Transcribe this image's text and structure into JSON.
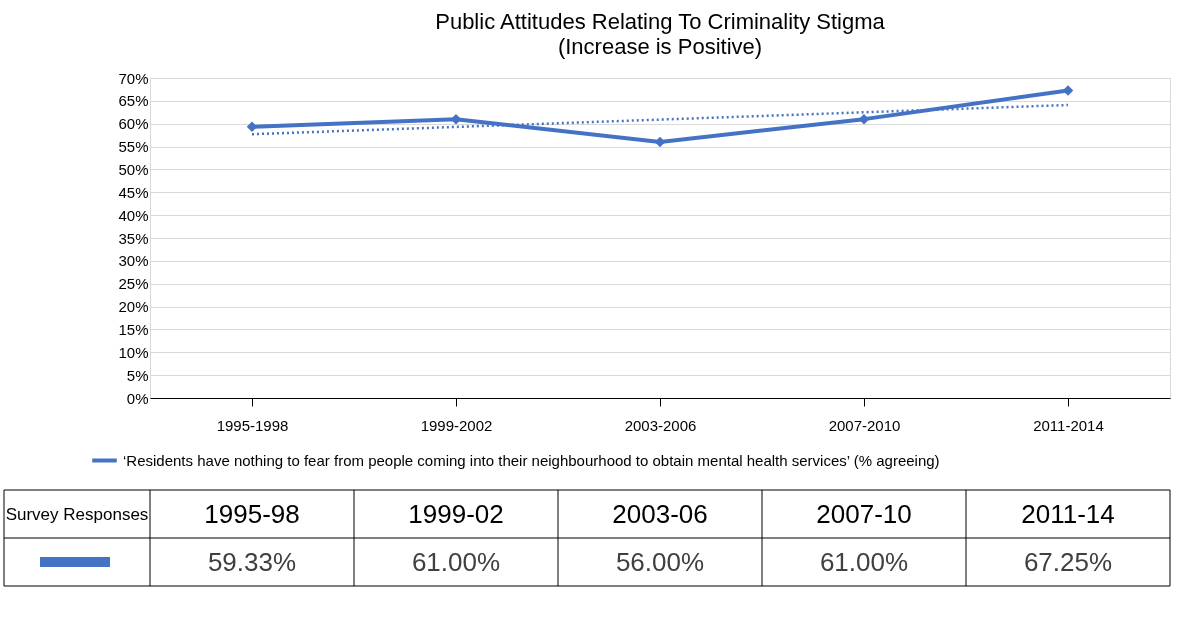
{
  "chart_data": {
    "type": "line",
    "title": "Public Attitudes Relating To Criminality Stigma",
    "subtitle": "(Increase is Positive)",
    "categories": [
      "1995-1998",
      "1999-2002",
      "2003-2006",
      "2007-2010",
      "2011-2014"
    ],
    "series": [
      {
        "name": "‘Residents have nothing to fear from people coming into their neighbourhood to obtain mental health services’ (% agreeing)",
        "color": "#4472c4",
        "values": [
          59.33,
          61.0,
          56.0,
          61.0,
          67.25
        ],
        "marker": "diamond",
        "value_labels": [
          "59.33%",
          "61.00%",
          "56.00%",
          "61.00%",
          "67.25%"
        ]
      },
      {
        "type": "line",
        "color": "#4472c4",
        "x": [
          "1995-1998",
          "2011-2014"
        ],
        "values": [
          57.7,
          64.1
        ],
        "line_style": "dotted",
        "marker": "none"
      }
    ],
    "ylim": [
      0,
      70
    ],
    "yticks": [
      {
        "value": 0,
        "label": "0%"
      },
      {
        "value": 5,
        "label": "5%"
      },
      {
        "value": 10,
        "label": "10%"
      },
      {
        "value": 15,
        "label": "15%"
      },
      {
        "value": 20,
        "label": "20%"
      },
      {
        "value": 25,
        "label": "25%"
      },
      {
        "value": 30,
        "label": "30%"
      },
      {
        "value": 35,
        "label": "35%"
      },
      {
        "value": 40,
        "label": "40%"
      },
      {
        "value": 45,
        "label": "45%"
      },
      {
        "value": 50,
        "label": "50%"
      },
      {
        "value": 55,
        "label": "55%"
      },
      {
        "value": 60,
        "label": "60%"
      },
      {
        "value": 65,
        "label": "65%"
      },
      {
        "value": 70,
        "label": "70%"
      }
    ],
    "grid": "y",
    "legend": "bottom",
    "line_style": "solid",
    "annotations": [
      "Survey Responses",
      "1995-98",
      "1999-02",
      "2003-06",
      "2007-10",
      "2011-14"
    ]
  }
}
